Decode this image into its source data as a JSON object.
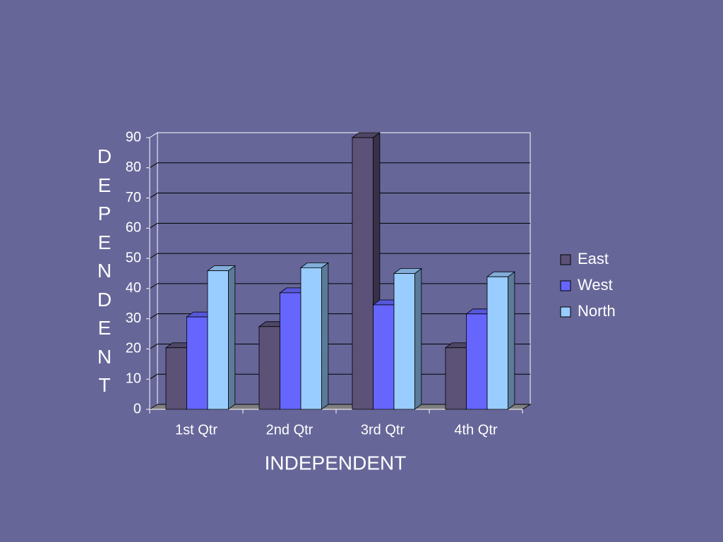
{
  "chart_data": {
    "type": "bar",
    "xlabel": "INDEPENDENT",
    "ylabel": "DEPENDENT",
    "categories": [
      "1st Qtr",
      "2nd Qtr",
      "3rd Qtr",
      "4th Qtr"
    ],
    "series": [
      {
        "name": "East",
        "color": "#5c5278",
        "values": [
          20.4,
          27.4,
          90,
          20.4
        ]
      },
      {
        "name": "West",
        "color": "#6666ff",
        "values": [
          30.6,
          38.6,
          34.6,
          31.6
        ]
      },
      {
        "name": "North",
        "color": "#99ccff",
        "values": [
          45.9,
          46.9,
          45,
          43.9
        ]
      }
    ],
    "ylim": [
      0,
      90
    ],
    "yticks": [
      0,
      10,
      20,
      30,
      40,
      50,
      60,
      70,
      80,
      90
    ],
    "grid": true,
    "legend": "right"
  }
}
